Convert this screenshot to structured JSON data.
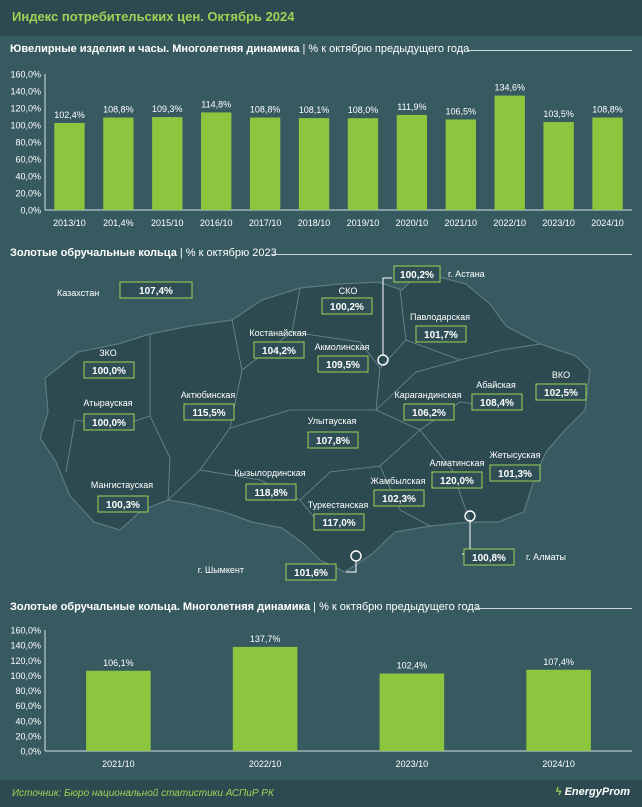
{
  "header": {
    "title": "Индекс потребительских цен. Октябрь 2024"
  },
  "section1": {
    "title_bold": "Ювелирные изделия и часы. Многолетняя динамика",
    "title_light": " | % к октябрю предыдущего года"
  },
  "section2": {
    "title_bold": "Золотые обручальные кольца",
    "title_light": " | % к октябрю 2023"
  },
  "section3": {
    "title_bold": "Золотые обручальные кольца. Многолетняя динамика",
    "title_light": " | % к октябрю предыдущего года"
  },
  "footer": {
    "source": "Источник: Бюро национальной статистики АСПиР РК",
    "logo": "EnergyProm"
  },
  "colors": {
    "bar": "#8cc63f",
    "background": "#375a61",
    "accent": "#9fd356",
    "map_fill": "#2d4a50",
    "label_bg": "#2f4e55"
  },
  "chart_data": [
    {
      "type": "bar",
      "categories": [
        "2013/10",
        "201,4%",
        "2015/10",
        "2016/10",
        "2017/10",
        "2018/10",
        "2019/10",
        "2020/10",
        "2021/10",
        "2022/10",
        "2023/10",
        "2024/10"
      ],
      "values": [
        102.4,
        108.8,
        109.3,
        114.8,
        108.8,
        108.1,
        108.0,
        111.9,
        106.5,
        134.6,
        103.5,
        108.8
      ],
      "labels": [
        "102,4%",
        "108,8%",
        "109,3%",
        "114,8%",
        "108,8%",
        "108,1%",
        "108,0%",
        "111,9%",
        "106,5%",
        "134,6%",
        "103,5%",
        "108,8%"
      ],
      "yticks": [
        "0,0%",
        "20,0%",
        "40,0%",
        "60,0%",
        "80,0%",
        "100,0%",
        "120,0%",
        "140,0%",
        "160,0%"
      ],
      "ylim": [
        0,
        160
      ]
    },
    {
      "type": "table",
      "country": {
        "name": "Казахстан",
        "value": "107,4%"
      },
      "regions": [
        {
          "name": "г. Астана",
          "value": "100,2%"
        },
        {
          "name": "СКО",
          "value": "100,2%"
        },
        {
          "name": "Павлодарская",
          "value": "101,7%"
        },
        {
          "name": "Костанайская",
          "value": "104,2%"
        },
        {
          "name": "Акмолинская",
          "value": "109,5%"
        },
        {
          "name": "ЗКО",
          "value": "100,0%"
        },
        {
          "name": "Актюбинская",
          "value": "115,5%"
        },
        {
          "name": "Атырауская",
          "value": "100,0%"
        },
        {
          "name": "Карагандинская",
          "value": "106,2%"
        },
        {
          "name": "Абайская",
          "value": "108,4%"
        },
        {
          "name": "ВКО",
          "value": "102,5%"
        },
        {
          "name": "Улытауская",
          "value": "107,8%"
        },
        {
          "name": "Мангистауская",
          "value": "100,3%"
        },
        {
          "name": "Кызылординская",
          "value": "118,8%"
        },
        {
          "name": "Жетысуская",
          "value": "101,3%"
        },
        {
          "name": "Алматинская",
          "value": "120,0%"
        },
        {
          "name": "Жамбылская",
          "value": "102,3%"
        },
        {
          "name": "Туркестанская",
          "value": "117,0%"
        },
        {
          "name": "г. Алматы",
          "value": "100,8%"
        },
        {
          "name": "г. Шымкент",
          "value": "101,6%"
        }
      ]
    },
    {
      "type": "bar",
      "categories": [
        "2021/10",
        "2022/10",
        "2023/10",
        "2024/10"
      ],
      "values": [
        106.1,
        137.7,
        102.4,
        107.4
      ],
      "labels": [
        "106,1%",
        "137,7%",
        "102,4%",
        "107,4%"
      ],
      "yticks": [
        "0,0%",
        "20,0%",
        "40,0%",
        "60,0%",
        "80,0%",
        "100,0%",
        "120,0%",
        "140,0%",
        "160,0%"
      ],
      "ylim": [
        0,
        160
      ]
    }
  ]
}
